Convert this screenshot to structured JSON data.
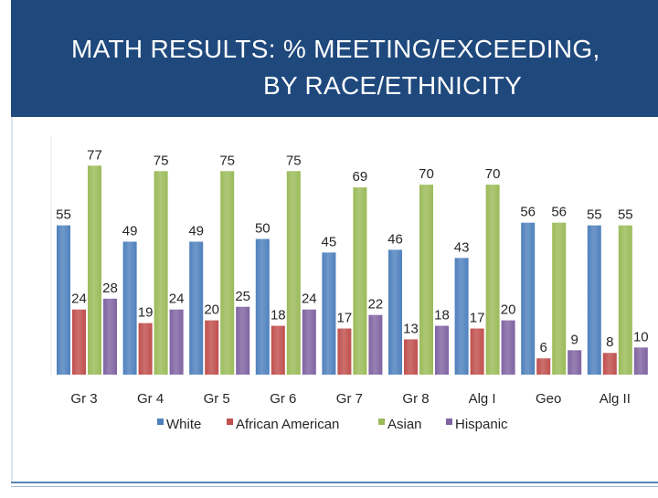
{
  "title": {
    "line1": "MATH RESULTS: % MEETING/EXCEEDING,",
    "line2": "BY RACE/ETHNICITY"
  },
  "chart_data": {
    "type": "bar",
    "categories": [
      "Gr 3",
      "Gr 4",
      "Gr 5",
      "Gr 6",
      "Gr 7",
      "Gr 8",
      "Alg I",
      "Geo",
      "Alg II"
    ],
    "series": [
      {
        "name": "White",
        "color": "#4f81bd",
        "values": [
          55,
          49,
          49,
          50,
          45,
          46,
          43,
          56,
          55
        ]
      },
      {
        "name": "African American",
        "color": "#c0504d",
        "values": [
          24,
          19,
          20,
          18,
          17,
          13,
          17,
          6,
          8
        ]
      },
      {
        "name": "Asian",
        "color": "#9bbb59",
        "values": [
          77,
          75,
          75,
          75,
          69,
          70,
          70,
          56,
          55
        ]
      },
      {
        "name": "Hispanic",
        "color": "#8064a2",
        "values": [
          28,
          24,
          25,
          24,
          22,
          18,
          20,
          9,
          10
        ]
      }
    ],
    "ylim": [
      0,
      80
    ],
    "grid": false,
    "legend": "bottom"
  }
}
